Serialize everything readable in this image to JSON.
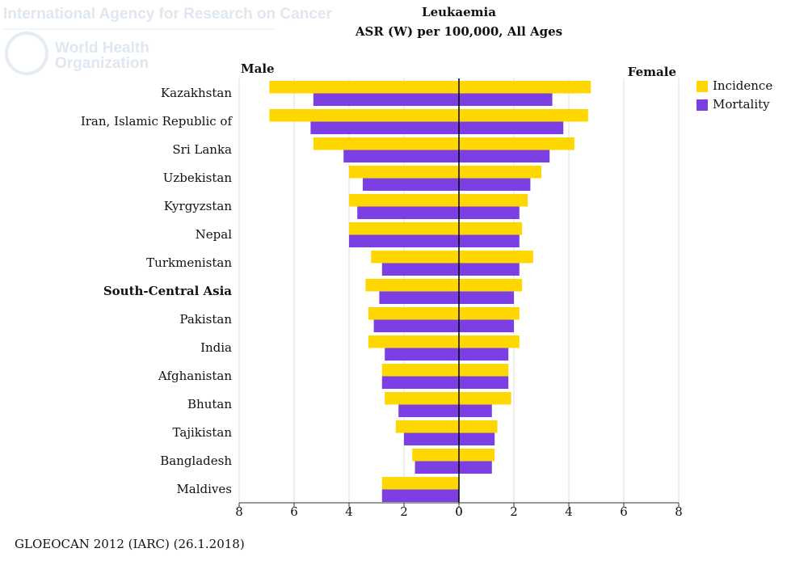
{
  "header": {
    "agency": "International Agency for Research on Cancer",
    "who_line1": "World Health",
    "who_line2": "Organization"
  },
  "chart_data": {
    "type": "pyramid",
    "title": "Leukaemia",
    "subtitle": "ASR (W) per 100,000, All Ages",
    "left_label": "Male",
    "right_label": "Female",
    "categories": [
      "Kazakhstan",
      "Iran, Islamic Republic of",
      "Sri Lanka",
      "Uzbekistan",
      "Kyrgyzstan",
      "Nepal",
      "Turkmenistan",
      "South-Central Asia",
      "Pakistan",
      "India",
      "Afghanistan",
      "Bhutan",
      "Tajikistan",
      "Bangladesh",
      "Maldives"
    ],
    "highlight_category": 7,
    "series": [
      {
        "name": "Incidence",
        "color": "#ffd700",
        "male": [
          6.9,
          6.9,
          5.3,
          4.0,
          4.0,
          4.0,
          3.2,
          3.4,
          3.3,
          3.3,
          2.8,
          2.7,
          2.3,
          1.7,
          2.8
        ],
        "female": [
          4.8,
          4.7,
          4.2,
          3.0,
          2.5,
          2.3,
          2.7,
          2.3,
          2.2,
          2.2,
          1.8,
          1.9,
          1.4,
          1.3,
          0
        ]
      },
      {
        "name": "Mortality",
        "color": "#7b3fe4",
        "male": [
          5.3,
          5.4,
          4.2,
          3.5,
          3.7,
          4.0,
          2.8,
          2.9,
          3.1,
          2.7,
          2.8,
          2.2,
          2.0,
          1.6,
          2.8
        ],
        "female": [
          3.4,
          3.8,
          3.3,
          2.6,
          2.2,
          2.2,
          2.2,
          2.0,
          2.0,
          1.8,
          1.8,
          1.2,
          1.3,
          1.2,
          0
        ]
      }
    ],
    "xlim": [
      0,
      8
    ],
    "xticks": [
      0,
      2,
      4,
      6,
      8
    ],
    "grid": true,
    "footer": "GLOEOCAN 2012 (IARC) (26.1.2018)"
  }
}
